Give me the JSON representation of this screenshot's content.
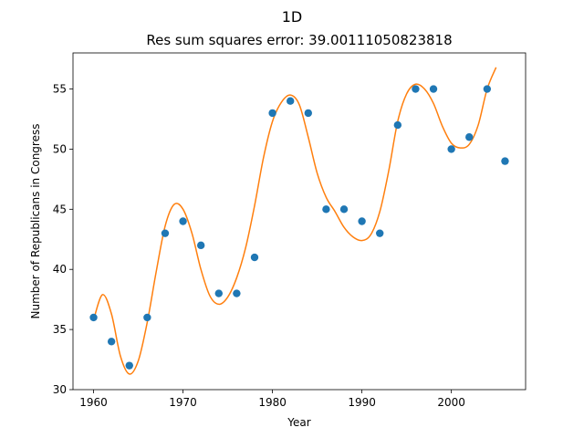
{
  "chart_data": {
    "type": "scatter",
    "title": "1D",
    "subtitle": "Res sum squares error: 39.00111050823818",
    "xlabel": "Year",
    "ylabel": "Number of Republicans in Congress",
    "xlim": [
      1957.7,
      2008.3
    ],
    "ylim": [
      30,
      58
    ],
    "xticks": [
      1960,
      1970,
      1980,
      1990,
      2000
    ],
    "yticks": [
      30,
      35,
      40,
      45,
      50,
      55
    ],
    "grid": false,
    "series": [
      {
        "kind": "scatter",
        "color": "#1f77b4",
        "x": [
          1960,
          1962,
          1964,
          1966,
          1968,
          1970,
          1972,
          1974,
          1976,
          1978,
          1980,
          1982,
          1984,
          1986,
          1988,
          1990,
          1992,
          1994,
          1996,
          1998,
          2000,
          2002,
          2004,
          2006
        ],
        "y": [
          36,
          34,
          32,
          36,
          43,
          44,
          42,
          38,
          38,
          41,
          53,
          54,
          53,
          45,
          45,
          44,
          43,
          52,
          55,
          55,
          50,
          51,
          55,
          49
        ]
      },
      {
        "kind": "line",
        "color": "#ff7f0e",
        "x": [
          1960,
          1961,
          1962,
          1963,
          1964,
          1965,
          1966,
          1967,
          1968,
          1969,
          1970,
          1971,
          1972,
          1973,
          1974,
          1975,
          1976,
          1977,
          1978,
          1979,
          1980,
          1981,
          1982,
          1983,
          1984,
          1985,
          1986,
          1987,
          1988,
          1989,
          1990,
          1991,
          1992,
          1993,
          1994,
          1995,
          1996,
          1997,
          1998,
          1999,
          2000,
          2001,
          2002,
          2003,
          2004,
          2005
        ],
        "y": [
          35.8,
          37.9,
          36.3,
          32.8,
          31.3,
          32.4,
          35.6,
          39.8,
          43.6,
          45.4,
          45.0,
          43.0,
          40.0,
          37.8,
          37.1,
          37.7,
          39.3,
          41.8,
          45.3,
          49.3,
          52.3,
          53.9,
          54.5,
          53.7,
          51.0,
          48.0,
          46.0,
          44.8,
          43.5,
          42.7,
          42.4,
          42.9,
          44.8,
          48.2,
          52.3,
          54.6,
          55.4,
          55.0,
          53.8,
          51.9,
          50.5,
          50.1,
          50.4,
          52.0,
          55.0,
          56.8
        ]
      }
    ]
  }
}
